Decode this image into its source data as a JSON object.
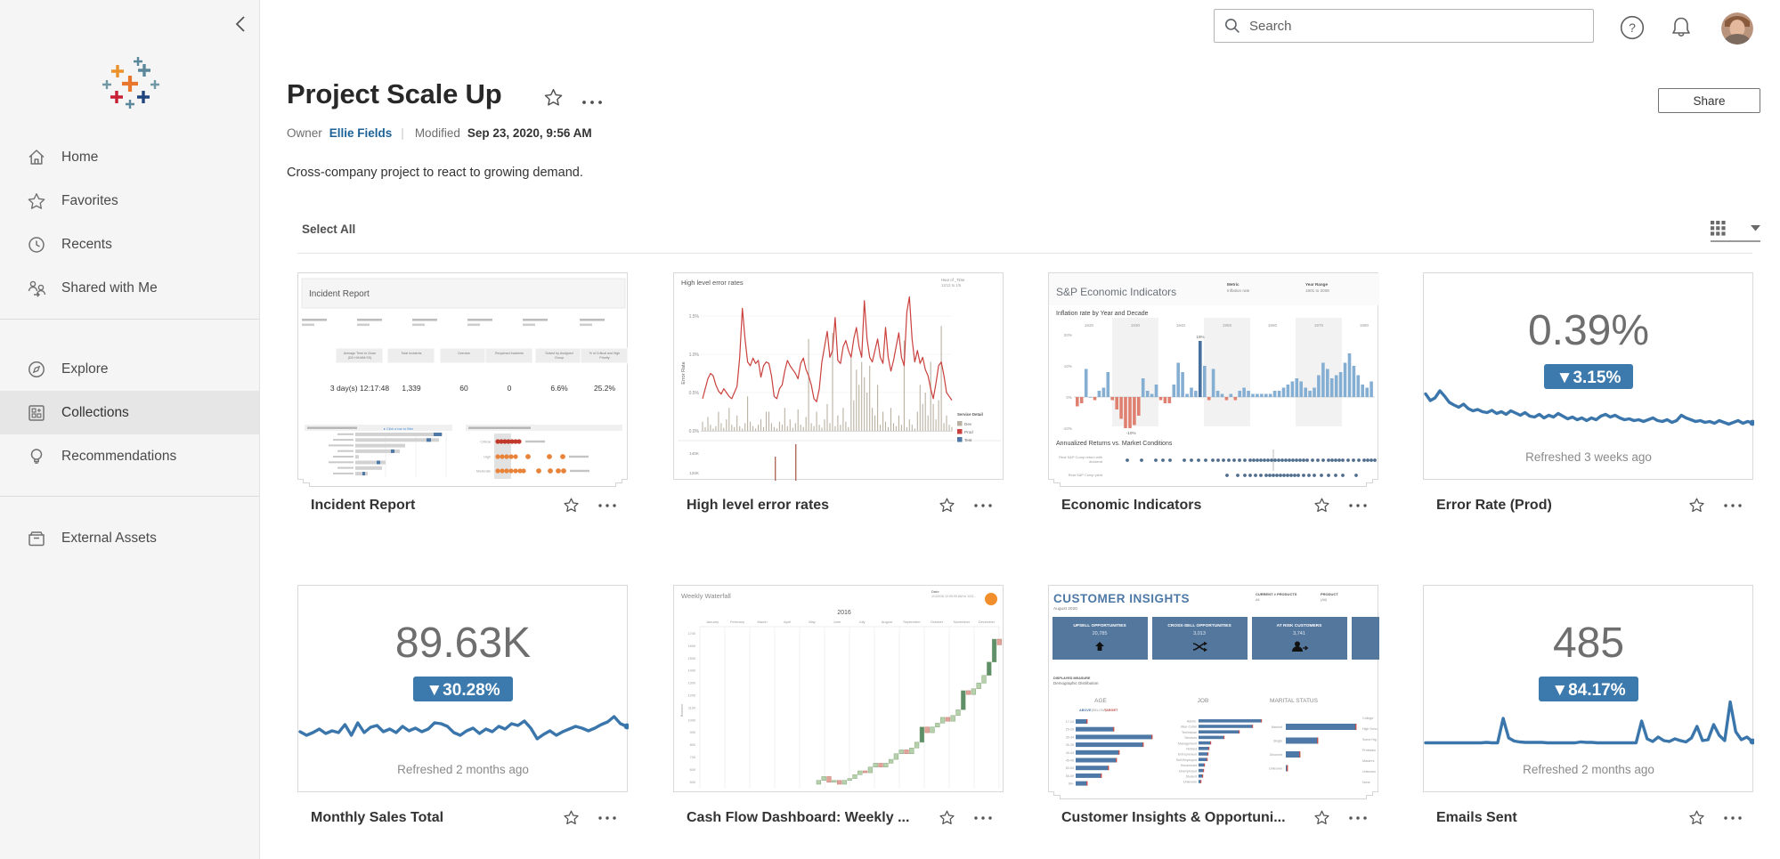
{
  "topbar": {
    "search_placeholder": "Search"
  },
  "sidebar": {
    "groups": [
      {
        "items": [
          {
            "name": "home",
            "label": "Home"
          },
          {
            "name": "favorites",
            "label": "Favorites"
          },
          {
            "name": "recents",
            "label": "Recents"
          },
          {
            "name": "shared",
            "label": "Shared with Me"
          }
        ]
      },
      {
        "items": [
          {
            "name": "explore",
            "label": "Explore"
          },
          {
            "name": "collections",
            "label": "Collections",
            "selected": true
          },
          {
            "name": "recommendations",
            "label": "Recommendations"
          }
        ]
      },
      {
        "items": [
          {
            "name": "external-assets",
            "label": "External Assets"
          }
        ]
      }
    ]
  },
  "header": {
    "title": "Project Scale Up",
    "owner_label": "Owner",
    "owner_name": "Ellie Fields",
    "separator": "|",
    "modified_label": "Modified",
    "modified_value": "Sep 23, 2020, 9:56 AM",
    "description": "Cross-company project to react to growing demand.",
    "share_label": "Share"
  },
  "toolbar": {
    "select_all": "Select All"
  },
  "colors": {
    "badge_blue": "#3C79AC",
    "spark_blue": "#3A76AB",
    "link_blue": "#1C6297",
    "steel": "#4E79A7",
    "bar_pos": "#85AED3",
    "bar_pos_dark": "#47709E",
    "bar_neg": "#E08070",
    "wf_pos": "#B7D0AC",
    "wf_pos_dark": "#5E8F68",
    "wf_neg": "#DFA39A",
    "orange": "#F28E2B",
    "dot_red": "#C0392B",
    "dot_orange": "#E8833A"
  },
  "cards": [
    {
      "title": "Incident Report",
      "type": "incident",
      "stacked": true,
      "thumb": {
        "title": "Incident Report",
        "kpi_headers": [
          [
            "Average Time to Close",
            "(DD HH:MM:SS)"
          ],
          [
            "Total Incidents",
            ""
          ],
          [
            "Overdue",
            ""
          ],
          [
            "Reopened Incidents",
            ""
          ],
          [
            "Solved by Assigned",
            "Group"
          ],
          [
            "% of Critical and High",
            "Priority"
          ]
        ],
        "kpi_values": [
          "3 day(s) 12:17:48",
          "1,339",
          "60",
          "0",
          "6.6%",
          "25.2%"
        ],
        "kpi_centers": [
          69,
          127,
          186,
          237,
          293,
          344
        ],
        "left_link": "Click a bar to filter",
        "bars": [
          [
            98,
            88,
            9
          ],
          [
            94,
            80,
            5
          ],
          [
            56,
            0,
            0
          ],
          [
            50,
            40,
            4
          ],
          [
            4,
            0,
            0
          ],
          [
            34,
            24,
            4
          ],
          [
            30,
            0,
            0
          ],
          [
            14,
            8,
            3
          ]
        ],
        "right_rows": [
          "Critical",
          "High",
          "Moderate"
        ],
        "dot_rows": [
          {
            "cluster": [
              224,
              228,
              232,
              236,
              240,
              244,
              248
            ],
            "singles": []
          },
          {
            "cluster": [
              224,
              229,
              234,
              239,
              244
            ],
            "singles": [
              258,
              282,
              297
            ]
          },
          {
            "cluster": [
              224,
              229,
              234,
              239,
              244,
              249,
              253
            ],
            "singles": [
              270,
              283,
              292,
              298
            ]
          }
        ]
      }
    },
    {
      "title": "High level error rates",
      "type": "errorline",
      "stacked": false,
      "thumb": {
        "title": "High level error rates",
        "corner_label": "Hour of _Time",
        "corner_value": "12/13 to 1/5",
        "ylabel": "Error Rate",
        "yticks": [
          "1.5%",
          "1.0%",
          "0.5%",
          "0.0%"
        ],
        "yticks2": [
          "140K",
          "120K"
        ],
        "legend_title": "Service Detail",
        "legend": [
          {
            "label": "Dev",
            "color": "#BAB0A1"
          },
          {
            "label": "Prod",
            "color": "#C9403D"
          },
          {
            "label": "Test",
            "color": "#4E79A7"
          }
        ],
        "prod": [
          42,
          55,
          68,
          75,
          72,
          60,
          52,
          48,
          55,
          50,
          45,
          42,
          50,
          58,
          96,
          160,
          120,
          90,
          85,
          95,
          88,
          92,
          70,
          85,
          90,
          88,
          72,
          45,
          42,
          55,
          60,
          78,
          92,
          85,
          80,
          75,
          68,
          88,
          95,
          80,
          72,
          60,
          42,
          38,
          55,
          90,
          110,
          130,
          96,
          105,
          148,
          92,
          88,
          110,
          118,
          105,
          96,
          120,
          135,
          110,
          96,
          170,
          120,
          96,
          90,
          105,
          120,
          96,
          88,
          135,
          96,
          78,
          92,
          110,
          128,
          96,
          85,
          155,
          175,
          120,
          90,
          105,
          88,
          96,
          80,
          72,
          55,
          42,
          62,
          85,
          90,
          72,
          50,
          45,
          40
        ],
        "dev": [
          12,
          5,
          18,
          8,
          3,
          6,
          25,
          10,
          4,
          15,
          30,
          8,
          5,
          20,
          6,
          3,
          10,
          45,
          12,
          6,
          3,
          8,
          15,
          5,
          25,
          25,
          10,
          5,
          3,
          12,
          8,
          30,
          6,
          15,
          4,
          10,
          28,
          8,
          5,
          18,
          120,
          10,
          6,
          25,
          8,
          4,
          15,
          35,
          10,
          128,
          6,
          20,
          8,
          30,
          12,
          5,
          95,
          40,
          80,
          60,
          90,
          70,
          50,
          85,
          30,
          20,
          60,
          8,
          25,
          12,
          5,
          30,
          10,
          6,
          20,
          8,
          118,
          5,
          15,
          8,
          3,
          25,
          60,
          35,
          50,
          20,
          90,
          35,
          15,
          40,
          137,
          10,
          20,
          8,
          5
        ]
      }
    },
    {
      "title": "Economic Indicators",
      "type": "econ",
      "stacked": true,
      "thumb": {
        "title": "S&P Economic Indicators",
        "metric_label": "Metric",
        "metric_value": "Inflation rate",
        "range_label": "Year Range",
        "range_value": "1901 to 2008",
        "subtitle": "Inflation rate by Year and Decade",
        "yticks": [
          "20%",
          "10%",
          "0%",
          "-10%"
        ],
        "decades": [
          "1920",
          "1930",
          "1940",
          "1950",
          "1960",
          "1970",
          "1980"
        ],
        "annotation_max": "18%",
        "annotation_min": "-10%",
        "section2": "Annualized Returns vs. Market Conditions",
        "row1_label_1": "Real S&P Comp return with",
        "row1_label_2": "dividend",
        "row2_label": "Real S&P Comp yield",
        "values": [
          -3,
          -2,
          9,
          0,
          -1,
          2,
          3,
          8,
          -1,
          -4,
          -7,
          -10,
          -10,
          -9,
          -6,
          6,
          2,
          1,
          4,
          -1,
          -2,
          -2,
          4,
          11,
          8,
          1,
          3,
          2,
          18,
          10,
          -1,
          9,
          2,
          1,
          -1,
          1,
          -1,
          2,
          3,
          2,
          1,
          1,
          1,
          1,
          1,
          2,
          2,
          3,
          4,
          5,
          6,
          5,
          3,
          2,
          3,
          7,
          11,
          9,
          6,
          7,
          8,
          11,
          14,
          10,
          7,
          4,
          3,
          5
        ],
        "dots1": [
          88,
          104,
          120,
          128,
          136,
          152,
          160,
          168,
          176,
          184,
          190,
          196,
          202,
          208,
          214,
          220,
          226,
          230,
          234,
          238,
          242,
          246,
          250,
          254,
          258,
          262,
          266,
          270,
          274,
          278,
          282,
          286,
          290,
          296,
          302,
          308,
          314,
          318,
          322,
          326,
          330,
          336,
          342,
          348,
          354,
          358,
          362,
          366
        ],
        "dots2": [
          200,
          212,
          220,
          226,
          232,
          238,
          244,
          248,
          252,
          256,
          260,
          264,
          268,
          272,
          276,
          280,
          286,
          292,
          298,
          306,
          314,
          322,
          330,
          345
        ]
      }
    },
    {
      "title": "Error Rate (Prod)",
      "type": "kpi",
      "value": "0.39%",
      "delta": "▼3.15%",
      "refreshed": "Refreshed 3 weeks ago",
      "spark": [
        85,
        70,
        76,
        92,
        80,
        66,
        60,
        55,
        62,
        52,
        47,
        50,
        45,
        43,
        48,
        41,
        45,
        39,
        47,
        42,
        37,
        43,
        35,
        33,
        39,
        31,
        37,
        33,
        41,
        35,
        29,
        33,
        27,
        31,
        25,
        31,
        27,
        35,
        39,
        33,
        37,
        31,
        27,
        29,
        25,
        27,
        23,
        27,
        31,
        25,
        23,
        27,
        21,
        25,
        37,
        31,
        27,
        23,
        25,
        21,
        23,
        19,
        25,
        21,
        17,
        21,
        25,
        19,
        23,
        20
      ]
    },
    {
      "title": "Monthly Sales Total",
      "type": "kpi",
      "value": "89.63K",
      "delta": "▼30.28%",
      "refreshed": "Refreshed 2 months ago",
      "spark": [
        28,
        20,
        26,
        34,
        24,
        30,
        26,
        44,
        20,
        48,
        26,
        38,
        42,
        28,
        34,
        26,
        40,
        30,
        36,
        28,
        34,
        48,
        46,
        40,
        26,
        20,
        30,
        36,
        24,
        34,
        28,
        40,
        34,
        46,
        42,
        52,
        36,
        12,
        22,
        30,
        20,
        28,
        34,
        40,
        36,
        30,
        36,
        44,
        50,
        62,
        46,
        40
      ]
    },
    {
      "title": "Cash Flow Dashboard: Weekly ...",
      "type": "waterfall",
      "stacked": false,
      "thumb": {
        "title": "Weekly Waterfall",
        "corner_label": "Date",
        "corner_value": "1/1/2016 12:00:00 AM to 12/3...",
        "year": "2016",
        "ylabel": "Balance",
        "months": [
          "January",
          "February",
          "March",
          "April",
          "May",
          "June",
          "July",
          "August",
          "September",
          "October",
          "November",
          "December"
        ],
        "y_top": 1700,
        "y_step": 100,
        "y_count": 13,
        "deltas": [
          2,
          2,
          -3,
          1,
          -2,
          2,
          1,
          2,
          2,
          -1,
          3,
          2,
          -2,
          2,
          2,
          3,
          2,
          -2,
          3,
          3,
          8,
          -3,
          3,
          2,
          3,
          -2,
          3,
          3,
          10,
          -2,
          3,
          3,
          4,
          7,
          12,
          -3
        ]
      }
    },
    {
      "title": "Customer Insights & Opportuni...",
      "type": "customer",
      "stacked": true,
      "thumb": {
        "title": "CUSTOMER INSIGHTS",
        "subtitle": "August 2020",
        "filter1_label": "CURRENT # PRODUCTS",
        "filter1_value": "All",
        "filter2_label": "PRODUCT",
        "filter2_value": "(All)",
        "tiles": [
          {
            "label": "UPSELL OPPORTUNITIES",
            "value": "20,785",
            "icon": "up"
          },
          {
            "label": "CROSS-SELL OPPORTUNITIES",
            "value": "3,013",
            "icon": "shuffle"
          },
          {
            "label": "AT RISK CUSTOMERS",
            "value": "3,741",
            "icon": "person"
          },
          {
            "label": "",
            "value": "",
            "icon": ""
          }
        ],
        "measure_label": "DISPLAYED MEASURE",
        "measure_value": "Demographic Distribution",
        "sections": [
          "AGE",
          "JOB",
          "MARITAL STATUS"
        ],
        "age_legend": [
          "ABOVE",
          "BELOW",
          "TARGET"
        ],
        "age": {
          "labels": [
            "17-24",
            "25-29",
            "30-34",
            "35-39",
            "40-44",
            "45-49",
            "50-54",
            "55-59",
            "60+"
          ],
          "values": [
            12,
            42,
            85,
            75,
            48,
            45,
            36,
            28,
            12
          ]
        },
        "job": {
          "labels": [
            "Admin.",
            "Blue-Collar",
            "Technician",
            "Services",
            "Management",
            "Retired",
            "Entrepreneur",
            "Self-Employed",
            "Housemaid",
            "Unemployed",
            "Student",
            "Unknown"
          ],
          "values": [
            70,
            60,
            45,
            28,
            13,
            11,
            10,
            9,
            6,
            5,
            4,
            2
          ]
        },
        "marital": {
          "labels": [
            "Married",
            "Single",
            "Divorced",
            "Unknown"
          ],
          "values": [
            78,
            35,
            15,
            1
          ]
        },
        "edu_labels": [
          "College",
          "High Scho",
          "Some Hig",
          "Professio",
          "Master's",
          "Unknown",
          "None"
        ]
      }
    },
    {
      "title": "Emails Sent",
      "type": "kpi",
      "value": "485",
      "delta": "▼84.17%",
      "refreshed": "Refreshed 2 months ago",
      "spark": [
        3,
        3,
        3,
        3,
        3,
        3,
        3,
        3,
        3,
        3,
        3,
        4,
        3,
        3,
        58,
        14,
        7,
        5,
        4,
        4,
        4,
        4,
        3,
        3,
        3,
        3,
        3,
        3,
        5,
        4,
        4,
        3,
        3,
        3,
        3,
        3,
        3,
        3,
        3,
        52,
        12,
        6,
        16,
        8,
        6,
        12,
        8,
        5,
        14,
        40,
        8,
        10,
        44,
        20,
        8,
        95,
        28,
        10,
        16,
        6
      ]
    }
  ]
}
